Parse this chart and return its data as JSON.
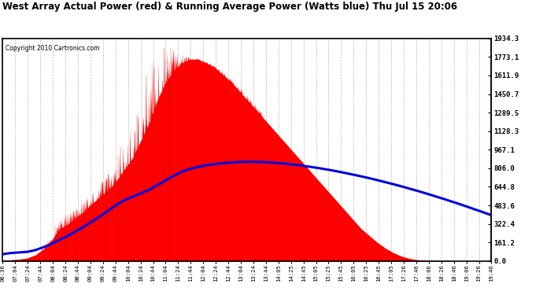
{
  "title": "West Array Actual Power (red) & Running Average Power (Watts blue) Thu Jul 15 20:06",
  "copyright": "Copyright 2010 Cartronics.com",
  "ymax": 1934.3,
  "yticks": [
    0.0,
    161.2,
    322.4,
    483.6,
    644.8,
    806.0,
    967.1,
    1128.3,
    1289.5,
    1450.7,
    1611.9,
    1773.1,
    1934.3
  ],
  "ytick_labels": [
    "0.0",
    "161.2",
    "322.4",
    "483.6",
    "644.8",
    "806.0",
    "967.1",
    "1128.3",
    "1289.5",
    "1450.7",
    "1611.9",
    "1773.1",
    "1934.3"
  ],
  "xtick_labels": [
    "06:36",
    "07:04",
    "07:24",
    "07:44",
    "08:04",
    "08:24",
    "08:44",
    "09:04",
    "09:24",
    "09:44",
    "10:04",
    "10:24",
    "10:44",
    "11:04",
    "11:24",
    "11:44",
    "12:04",
    "12:24",
    "12:44",
    "13:04",
    "13:24",
    "13:44",
    "14:05",
    "14:25",
    "14:45",
    "15:05",
    "15:25",
    "15:45",
    "16:05",
    "16:25",
    "16:45",
    "17:05",
    "17:26",
    "17:46",
    "18:06",
    "18:26",
    "18:46",
    "19:06",
    "19:26",
    "19:46"
  ],
  "bg_color": "#ffffff",
  "plot_bg_color": "#ffffff",
  "grid_color": "#bbbbbb",
  "title_color": "#000000",
  "red_color": "#ff0000",
  "blue_color": "#0000dd",
  "border_color": "#000000",
  "actual_base": [
    5,
    10,
    15,
    25,
    50,
    100,
    180,
    280,
    320,
    380,
    430,
    500,
    560,
    620,
    700,
    800,
    900,
    1050,
    1200,
    1400,
    1550,
    1650,
    1720,
    1750,
    1750,
    1720,
    1680,
    1620,
    1560,
    1480,
    1400,
    1320,
    1240,
    1160,
    1080,
    1000,
    920,
    840,
    760,
    680,
    600,
    520,
    440,
    360,
    280,
    220,
    160,
    110,
    70,
    40,
    20,
    10,
    5,
    3,
    2,
    1,
    0,
    0,
    0,
    0,
    0
  ],
  "running_avg": [
    60,
    70,
    75,
    80,
    95,
    120,
    150,
    185,
    220,
    260,
    300,
    345,
    390,
    440,
    490,
    530,
    560,
    590,
    620,
    660,
    700,
    740,
    775,
    800,
    818,
    832,
    842,
    850,
    856,
    860,
    862,
    862,
    860,
    856,
    850,
    843,
    835,
    826,
    816,
    805,
    793,
    780,
    766,
    751,
    736,
    720,
    703,
    685,
    667,
    648,
    628,
    608,
    587,
    565,
    543,
    520,
    497,
    473,
    448,
    424,
    398
  ],
  "n_points": 61,
  "spike_envelope": [
    5,
    10,
    15,
    25,
    60,
    130,
    250,
    380,
    420,
    470,
    530,
    600,
    700,
    800,
    900,
    1100,
    1250,
    1450,
    1700,
    1934,
    1934,
    1850,
    1800,
    1780,
    1760,
    1740,
    1700,
    1660,
    1600,
    1540,
    1460,
    1380,
    1300,
    1220,
    1140,
    1060,
    980,
    900,
    820,
    740,
    660,
    580,
    500,
    420,
    340,
    260,
    200,
    140,
    90,
    55,
    25,
    12,
    6,
    3,
    2,
    1,
    0,
    0,
    0,
    0,
    0
  ]
}
